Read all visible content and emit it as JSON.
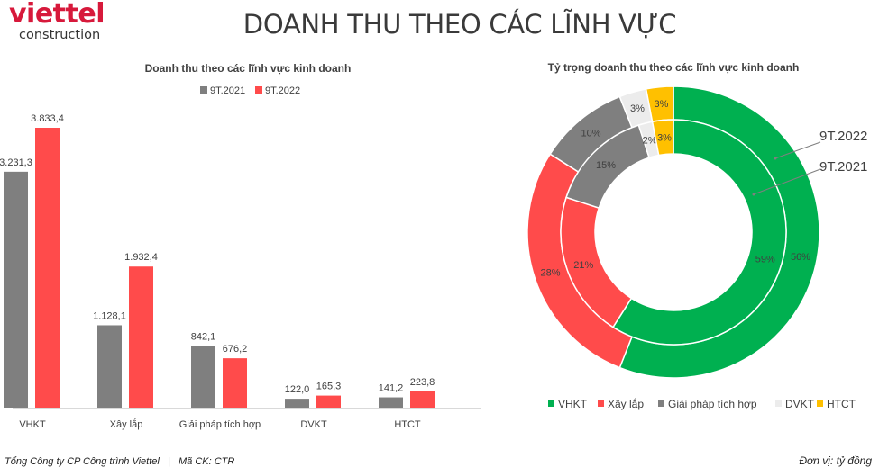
{
  "header": {
    "logo_main": "viettel",
    "logo_sub": "construction",
    "title": "DOANH THU THEO CÁC LĨNH VỰC"
  },
  "footer": {
    "company": "Tổng Công ty CP Công trình Viettel   |   Mã CK: CTR",
    "unit": "Đơn vị: tỷ đồng"
  },
  "colors": {
    "brand_red": "#d7193b",
    "series_2021": "#7f7f7f",
    "series_2022": "#ff4b4b",
    "VHKT": "#00b050",
    "Xay_lap": "#ff4b4b",
    "Giai_phap": "#7f7f7f",
    "DVKT": "#ececec",
    "HTCT": "#ffc000"
  },
  "chart_data": [
    {
      "type": "bar",
      "title": "Doanh thu theo các lĩnh vực kinh doanh",
      "categories": [
        "VHKT",
        "Xây lắp",
        "Giải pháp tích hợp",
        "DVKT",
        "HTCT"
      ],
      "series": [
        {
          "name": "9T.2021",
          "values": [
            3231.3,
            1128.1,
            842.1,
            122.0,
            141.2
          ],
          "labels": [
            "3.231,3",
            "1.128,1",
            "842,1",
            "122,0",
            "141,2"
          ]
        },
        {
          "name": "9T.2022",
          "values": [
            3833.4,
            1932.4,
            676.2,
            165.3,
            223.8
          ],
          "labels": [
            "3.833,4",
            "1.932,4",
            "676,2",
            "165,3",
            "223,8"
          ]
        }
      ],
      "xlabel": "",
      "ylabel": "",
      "ylim": [
        0,
        3833.4
      ],
      "grid": false,
      "legend_position": "top"
    },
    {
      "type": "pie",
      "subtype": "doughnut",
      "title": "Tỷ trọng doanh thu theo các lĩnh vực kinh doanh",
      "categories": [
        "VHKT",
        "Xây lắp",
        "Giải pháp tích hợp",
        "DVKT",
        "HTCT"
      ],
      "series": [
        {
          "name": "9T.2022",
          "ring": "outer",
          "values": [
            56,
            28,
            10,
            3,
            3
          ],
          "labels": [
            "56%",
            "28%",
            "10%",
            "3%",
            "3%"
          ]
        },
        {
          "name": "9T.2021",
          "ring": "inner",
          "values": [
            59,
            21,
            15,
            2,
            3
          ],
          "labels": [
            "59%",
            "21%",
            "15%",
            "2%",
            "3%"
          ]
        }
      ],
      "annotations": [
        "9T.2022",
        "9T.2021"
      ],
      "legend_position": "bottom"
    }
  ]
}
